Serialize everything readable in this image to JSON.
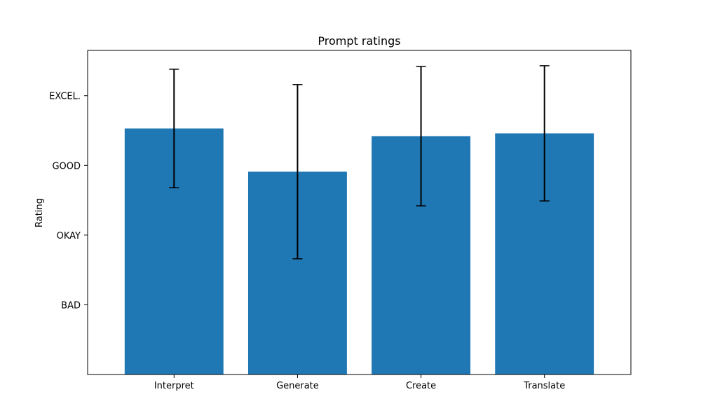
{
  "chart_data": {
    "type": "bar",
    "title": "Prompt ratings",
    "xlabel": "",
    "ylabel": "Rating",
    "categories": [
      "Interpret",
      "Generate",
      "Create",
      "Translate"
    ],
    "values": [
      3.53,
      2.91,
      3.42,
      3.46
    ],
    "errors": [
      0.85,
      1.25,
      1.0,
      0.97
    ],
    "ylim": [
      0,
      4.65
    ],
    "yticks": [
      {
        "value": 1,
        "label": "BAD"
      },
      {
        "value": 2,
        "label": "OKAY"
      },
      {
        "value": 3,
        "label": "GOOD"
      },
      {
        "value": 4,
        "label": "EXCEL."
      }
    ],
    "grid": false,
    "legend": false,
    "colors": {
      "bar": "#1f77b4",
      "error": "#000000",
      "axis": "#000000"
    }
  }
}
